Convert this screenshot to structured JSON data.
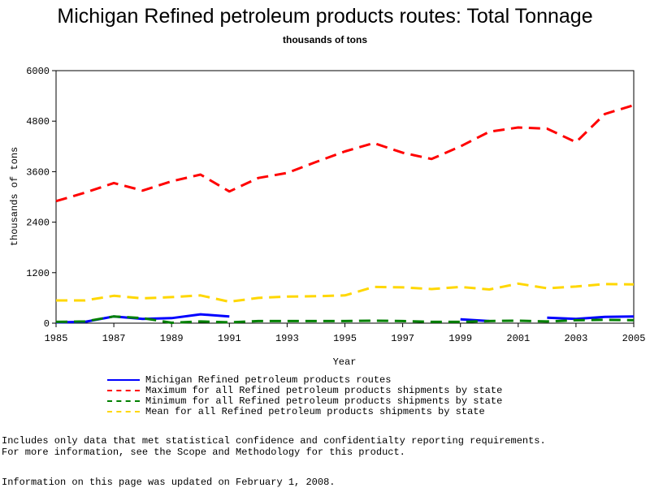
{
  "chart_data": {
    "type": "line",
    "title": "Michigan Refined petroleum products routes: Total Tonnage",
    "subtitle": "thousands of tons",
    "xlabel": "Year",
    "ylabel": "thousands of tons",
    "xlim": [
      1985,
      2005
    ],
    "ylim": [
      0,
      6000
    ],
    "x_ticks": [
      "1985",
      "1987",
      "1989",
      "1991",
      "1993",
      "1995",
      "1997",
      "1999",
      "2001",
      "2003",
      "2005"
    ],
    "y_ticks": [
      "0",
      "1200",
      "2400",
      "3600",
      "4800",
      "6000"
    ],
    "grid": false,
    "legend_position": "bottom",
    "series": [
      {
        "name": "Michigan Refined petroleum products routes",
        "color": "#0000ff",
        "style": "solid",
        "segments": [
          [
            [
              1985,
              20
            ],
            [
              1986,
              30
            ],
            [
              1987,
              160
            ],
            [
              1988,
              100
            ],
            [
              1989,
              120
            ],
            [
              1990,
              210
            ],
            [
              1991,
              160
            ]
          ],
          [
            [
              1999,
              90
            ],
            [
              2000,
              50
            ]
          ],
          [
            [
              2002,
              130
            ],
            [
              2003,
              100
            ],
            [
              2004,
              150
            ],
            [
              2005,
              160
            ]
          ]
        ]
      },
      {
        "name": "Maximum for all Refined petroleum products shipments by state",
        "color": "#ff0000",
        "style": "dashed",
        "segments": [
          [
            [
              1985,
              2900
            ],
            [
              1986,
              3100
            ],
            [
              1987,
              3330
            ],
            [
              1988,
              3150
            ],
            [
              1989,
              3370
            ],
            [
              1990,
              3530
            ],
            [
              1991,
              3130
            ],
            [
              1992,
              3450
            ],
            [
              1993,
              3570
            ],
            [
              1994,
              3830
            ],
            [
              1995,
              4080
            ],
            [
              1996,
              4280
            ],
            [
              1997,
              4050
            ],
            [
              1998,
              3900
            ],
            [
              1999,
              4200
            ],
            [
              2000,
              4550
            ],
            [
              2001,
              4650
            ],
            [
              2002,
              4620
            ],
            [
              2003,
              4300
            ],
            [
              2004,
              4970
            ],
            [
              2005,
              5180
            ]
          ]
        ]
      },
      {
        "name": "Minimum for all Refined petroleum products shipments by state",
        "color": "#008000",
        "style": "dashed",
        "segments": [
          [
            [
              1985,
              30
            ],
            [
              1986,
              40
            ],
            [
              1987,
              160
            ],
            [
              1988,
              120
            ],
            [
              1989,
              10
            ],
            [
              1990,
              40
            ],
            [
              1991,
              20
            ],
            [
              1992,
              50
            ],
            [
              1993,
              50
            ],
            [
              1994,
              50
            ],
            [
              1995,
              50
            ],
            [
              1996,
              60
            ],
            [
              1997,
              50
            ],
            [
              1998,
              30
            ],
            [
              1999,
              30
            ],
            [
              2000,
              50
            ],
            [
              2001,
              60
            ],
            [
              2002,
              40
            ],
            [
              2003,
              70
            ],
            [
              2004,
              80
            ],
            [
              2005,
              70
            ]
          ]
        ]
      },
      {
        "name": "Mean for all Refined petroleum products shipments by state",
        "color": "#ffd700",
        "style": "dashed",
        "segments": [
          [
            [
              1985,
              540
            ],
            [
              1986,
              540
            ],
            [
              1987,
              650
            ],
            [
              1988,
              590
            ],
            [
              1989,
              620
            ],
            [
              1990,
              660
            ],
            [
              1991,
              510
            ],
            [
              1992,
              600
            ],
            [
              1993,
              630
            ],
            [
              1994,
              640
            ],
            [
              1995,
              660
            ],
            [
              1996,
              860
            ],
            [
              1997,
              850
            ],
            [
              1998,
              810
            ],
            [
              1999,
              860
            ],
            [
              2000,
              800
            ],
            [
              2001,
              940
            ],
            [
              2002,
              830
            ],
            [
              2003,
              870
            ],
            [
              2004,
              930
            ],
            [
              2005,
              920
            ]
          ]
        ]
      }
    ]
  },
  "notes": [
    "Includes only data that met statistical confidence and confidentialty reporting requirements.",
    "For more information, see the Scope and Methodology for this product."
  ],
  "updated": "Information on this page was updated on February 1, 2008."
}
